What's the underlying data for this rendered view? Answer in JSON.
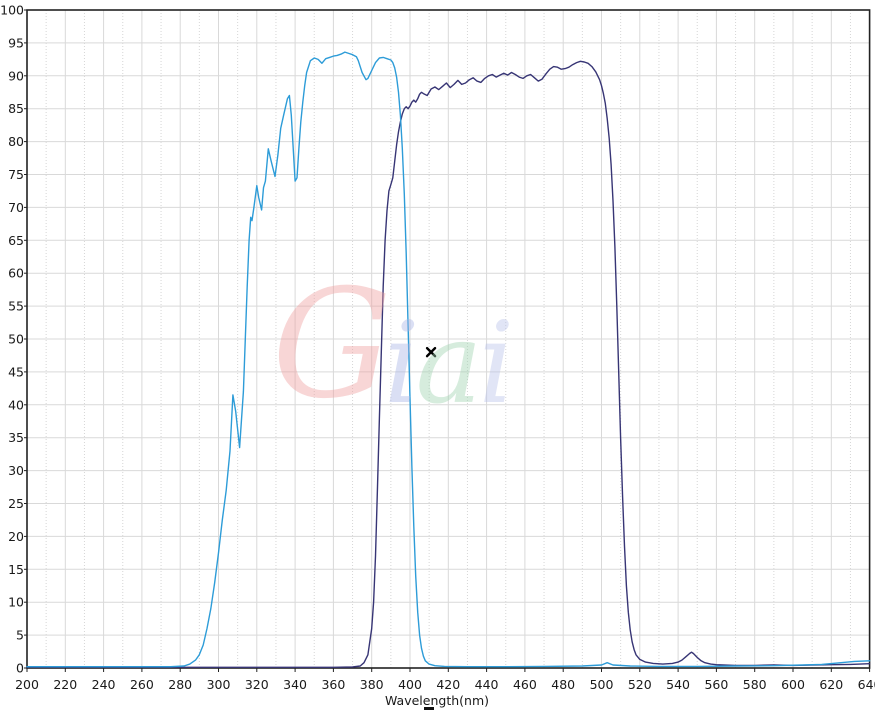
{
  "page": {
    "background": "#ffffff"
  },
  "chart_data": {
    "type": "line",
    "title": "",
    "xlabel": "Wavelength(nm)",
    "ylabel": "",
    "xlim": [
      200,
      640
    ],
    "ylim": [
      0,
      100
    ],
    "x_tick_step": 20,
    "y_tick_step": 5,
    "x_minor_step": 10,
    "grid": "major solid light-gray; vertical minor dotted",
    "legend": "none",
    "axis_color": "#222222",
    "grid_major_color": "#d9d9d9",
    "grid_minor_color": "#d6d6d6",
    "tick_label_color": "#1a1a1a",
    "cursor_marker": {
      "symbol": "x",
      "wavelength_nm": 411,
      "value_pct": 48,
      "color": "#000000"
    },
    "series": [
      {
        "name": "uv-bandpass-curve-cyan",
        "color": "#2D9CD8",
        "points": [
          [
            200,
            0.2
          ],
          [
            220,
            0.2
          ],
          [
            240,
            0.2
          ],
          [
            260,
            0.2
          ],
          [
            275,
            0.2
          ],
          [
            282,
            0.3
          ],
          [
            285,
            0.6
          ],
          [
            288,
            1.2
          ],
          [
            290,
            2
          ],
          [
            292,
            3.5
          ],
          [
            294,
            6
          ],
          [
            296,
            9
          ],
          [
            298,
            13
          ],
          [
            300,
            17.5
          ],
          [
            302,
            22.5
          ],
          [
            304,
            27
          ],
          [
            306,
            33
          ],
          [
            307.5,
            41.5
          ],
          [
            309,
            39
          ],
          [
            311,
            33.5
          ],
          [
            313,
            42
          ],
          [
            314,
            50
          ],
          [
            315,
            58
          ],
          [
            316,
            65
          ],
          [
            316.8,
            68.5
          ],
          [
            317.5,
            68
          ],
          [
            318.5,
            70
          ],
          [
            320,
            73.3
          ],
          [
            321,
            71.5
          ],
          [
            322.5,
            69.6
          ],
          [
            323.5,
            73
          ],
          [
            324.5,
            74
          ],
          [
            326,
            78.9
          ],
          [
            327.5,
            77
          ],
          [
            329.5,
            74.7
          ],
          [
            331,
            78
          ],
          [
            332.5,
            82
          ],
          [
            334,
            84
          ],
          [
            336,
            86.5
          ],
          [
            337,
            87
          ],
          [
            338,
            84
          ],
          [
            340,
            74
          ],
          [
            341,
            74.5
          ],
          [
            342,
            79
          ],
          [
            343,
            83
          ],
          [
            344,
            86
          ],
          [
            345,
            88.5
          ],
          [
            346,
            90.5
          ],
          [
            348,
            92.3
          ],
          [
            350,
            92.7
          ],
          [
            352,
            92.5
          ],
          [
            354,
            91.9
          ],
          [
            356,
            92.6
          ],
          [
            358,
            92.8
          ],
          [
            360,
            93
          ],
          [
            362,
            93.1
          ],
          [
            364,
            93.3
          ],
          [
            366,
            93.6
          ],
          [
            368,
            93.4
          ],
          [
            370,
            93.2
          ],
          [
            372,
            92.9
          ],
          [
            373,
            92.3
          ],
          [
            375,
            90.5
          ],
          [
            377,
            89.4
          ],
          [
            378,
            89.6
          ],
          [
            380,
            90.8
          ],
          [
            382,
            92
          ],
          [
            384,
            92.7
          ],
          [
            386,
            92.8
          ],
          [
            388,
            92.6
          ],
          [
            390,
            92.4
          ],
          [
            391,
            92
          ],
          [
            392,
            91.2
          ],
          [
            393,
            89.8
          ],
          [
            394,
            87.5
          ],
          [
            395,
            84
          ],
          [
            396,
            79
          ],
          [
            397,
            72
          ],
          [
            398,
            63
          ],
          [
            399,
            52
          ],
          [
            400,
            41
          ],
          [
            401,
            30.5
          ],
          [
            402,
            21.5
          ],
          [
            403,
            14
          ],
          [
            404,
            8.5
          ],
          [
            405,
            5
          ],
          [
            406,
            3
          ],
          [
            407,
            1.8
          ],
          [
            408,
            1.1
          ],
          [
            410,
            0.6
          ],
          [
            413,
            0.35
          ],
          [
            418,
            0.25
          ],
          [
            430,
            0.2
          ],
          [
            450,
            0.2
          ],
          [
            470,
            0.25
          ],
          [
            490,
            0.3
          ],
          [
            500,
            0.45
          ],
          [
            503,
            0.8
          ],
          [
            506,
            0.45
          ],
          [
            515,
            0.3
          ],
          [
            530,
            0.25
          ],
          [
            550,
            0.25
          ],
          [
            570,
            0.3
          ],
          [
            590,
            0.35
          ],
          [
            605,
            0.45
          ],
          [
            615,
            0.55
          ],
          [
            625,
            0.8
          ],
          [
            632,
            1
          ],
          [
            640,
            1.1
          ]
        ]
      },
      {
        "name": "blue-bandpass-curve-navy",
        "color": "#373575",
        "points": [
          [
            200,
            0.1
          ],
          [
            240,
            0.1
          ],
          [
            280,
            0.1
          ],
          [
            320,
            0.1
          ],
          [
            360,
            0.1
          ],
          [
            370,
            0.15
          ],
          [
            374,
            0.3
          ],
          [
            376,
            0.8
          ],
          [
            378,
            2
          ],
          [
            380,
            6
          ],
          [
            381,
            10
          ],
          [
            382,
            17
          ],
          [
            383,
            27
          ],
          [
            384,
            38
          ],
          [
            385,
            48
          ],
          [
            386,
            58
          ],
          [
            387,
            65
          ],
          [
            388,
            69.5
          ],
          [
            389,
            72.5
          ],
          [
            390,
            73.5
          ],
          [
            391,
            74.5
          ],
          [
            392,
            77
          ],
          [
            393,
            79.5
          ],
          [
            394,
            81.5
          ],
          [
            395,
            83
          ],
          [
            396,
            84.2
          ],
          [
            397,
            85
          ],
          [
            398,
            85.3
          ],
          [
            399,
            85
          ],
          [
            400,
            85.4
          ],
          [
            401,
            86
          ],
          [
            402,
            86.3
          ],
          [
            403,
            86
          ],
          [
            404,
            86.5
          ],
          [
            405,
            87.2
          ],
          [
            406,
            87.5
          ],
          [
            407,
            87.3
          ],
          [
            409,
            87
          ],
          [
            411,
            88
          ],
          [
            413,
            88.3
          ],
          [
            415,
            87.9
          ],
          [
            417,
            88.4
          ],
          [
            419,
            88.9
          ],
          [
            421,
            88.2
          ],
          [
            423,
            88.7
          ],
          [
            425,
            89.3
          ],
          [
            427,
            88.7
          ],
          [
            429,
            88.9
          ],
          [
            431,
            89.4
          ],
          [
            433,
            89.7
          ],
          [
            435,
            89.2
          ],
          [
            437,
            89
          ],
          [
            439,
            89.6
          ],
          [
            441,
            90
          ],
          [
            443,
            90.2
          ],
          [
            445,
            89.8
          ],
          [
            447,
            90.1
          ],
          [
            449,
            90.4
          ],
          [
            451,
            90.1
          ],
          [
            453,
            90.5
          ],
          [
            455,
            90.2
          ],
          [
            457,
            89.8
          ],
          [
            459,
            89.6
          ],
          [
            461,
            90
          ],
          [
            463,
            90.2
          ],
          [
            465,
            89.7
          ],
          [
            467,
            89.2
          ],
          [
            469,
            89.5
          ],
          [
            471,
            90.3
          ],
          [
            473,
            91
          ],
          [
            475,
            91.4
          ],
          [
            477,
            91.3
          ],
          [
            479,
            91
          ],
          [
            481,
            91.1
          ],
          [
            483,
            91.3
          ],
          [
            485,
            91.7
          ],
          [
            487,
            92
          ],
          [
            489,
            92.2
          ],
          [
            491,
            92.1
          ],
          [
            493,
            91.9
          ],
          [
            495,
            91.4
          ],
          [
            497,
            90.6
          ],
          [
            499,
            89.4
          ],
          [
            500,
            88.5
          ],
          [
            501,
            87.3
          ],
          [
            502,
            85.8
          ],
          [
            503,
            83.5
          ],
          [
            504,
            80.5
          ],
          [
            505,
            76.5
          ],
          [
            506,
            71
          ],
          [
            507,
            64
          ],
          [
            508,
            55
          ],
          [
            509,
            45
          ],
          [
            510,
            35
          ],
          [
            511,
            26
          ],
          [
            512,
            18.5
          ],
          [
            513,
            12.5
          ],
          [
            514,
            8.5
          ],
          [
            515,
            5.8
          ],
          [
            516,
            4
          ],
          [
            517,
            2.8
          ],
          [
            518,
            2
          ],
          [
            520,
            1.3
          ],
          [
            523,
            0.9
          ],
          [
            527,
            0.7
          ],
          [
            532,
            0.6
          ],
          [
            537,
            0.7
          ],
          [
            540,
            0.9
          ],
          [
            542,
            1.2
          ],
          [
            544,
            1.7
          ],
          [
            546,
            2.2
          ],
          [
            547,
            2.4
          ],
          [
            548,
            2.2
          ],
          [
            550,
            1.6
          ],
          [
            552,
            1.1
          ],
          [
            554,
            0.8
          ],
          [
            557,
            0.6
          ],
          [
            560,
            0.5
          ],
          [
            570,
            0.4
          ],
          [
            580,
            0.4
          ],
          [
            590,
            0.45
          ],
          [
            600,
            0.4
          ],
          [
            610,
            0.45
          ],
          [
            620,
            0.5
          ],
          [
            630,
            0.55
          ],
          [
            640,
            0.65
          ]
        ]
      }
    ]
  },
  "watermark": {
    "text": "Giai",
    "letters": [
      {
        "char": "G",
        "color": "#ef9f9f"
      },
      {
        "char": "i",
        "color": "#a9b5e6"
      },
      {
        "char": "a",
        "color": "#9ed4af"
      },
      {
        "char": "i",
        "color": "#b9c2ea"
      }
    ]
  }
}
